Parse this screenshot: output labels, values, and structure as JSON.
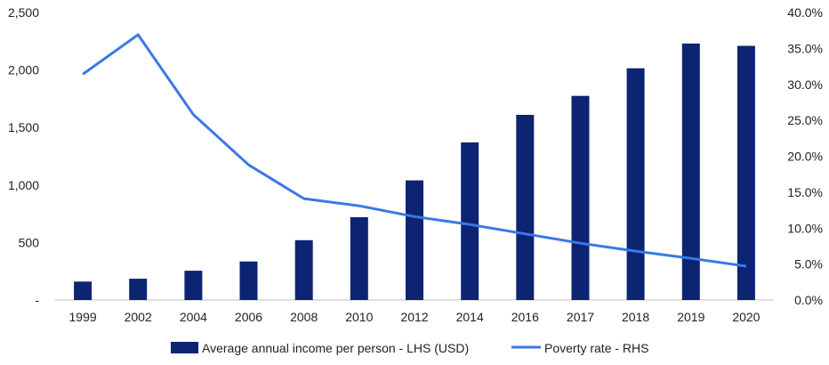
{
  "chart_data": {
    "type": "bar",
    "categories": [
      "1999",
      "2002",
      "2004",
      "2006",
      "2008",
      "2010",
      "2012",
      "2014",
      "2016",
      "2017",
      "2018",
      "2019",
      "2020"
    ],
    "series": [
      {
        "name": "Average annual income per person - LHS (USD)",
        "type": "bar",
        "axis": "left",
        "color": "#0d2473",
        "values": [
          160,
          185,
          255,
          335,
          520,
          720,
          1040,
          1370,
          1610,
          1775,
          2015,
          2230,
          2210
        ]
      },
      {
        "name": "Poverty rate - RHS",
        "type": "line",
        "axis": "right",
        "color": "#3b78e7",
        "values": [
          31.4,
          36.9,
          25.8,
          18.8,
          14.1,
          13.1,
          11.6,
          10.5,
          9.2,
          7.9,
          6.8,
          5.8,
          4.7
        ]
      }
    ],
    "left_axis": {
      "ylim": [
        0,
        2500
      ],
      "ticks": [
        0,
        500,
        1000,
        1500,
        2000,
        2500
      ],
      "tick_labels": [
        "-",
        "500",
        "1,000",
        "1,500",
        "2,000",
        "2,500"
      ]
    },
    "right_axis": {
      "ylim": [
        0,
        40
      ],
      "ticks": [
        0,
        5,
        10,
        15,
        20,
        25,
        30,
        35,
        40
      ],
      "tick_labels": [
        "0.0%",
        "5.0%",
        "10.0%",
        "15.0%",
        "20.0%",
        "25.0%",
        "30.0%",
        "35.0%",
        "40.0%"
      ]
    },
    "grid": false,
    "legend_position": "bottom"
  }
}
